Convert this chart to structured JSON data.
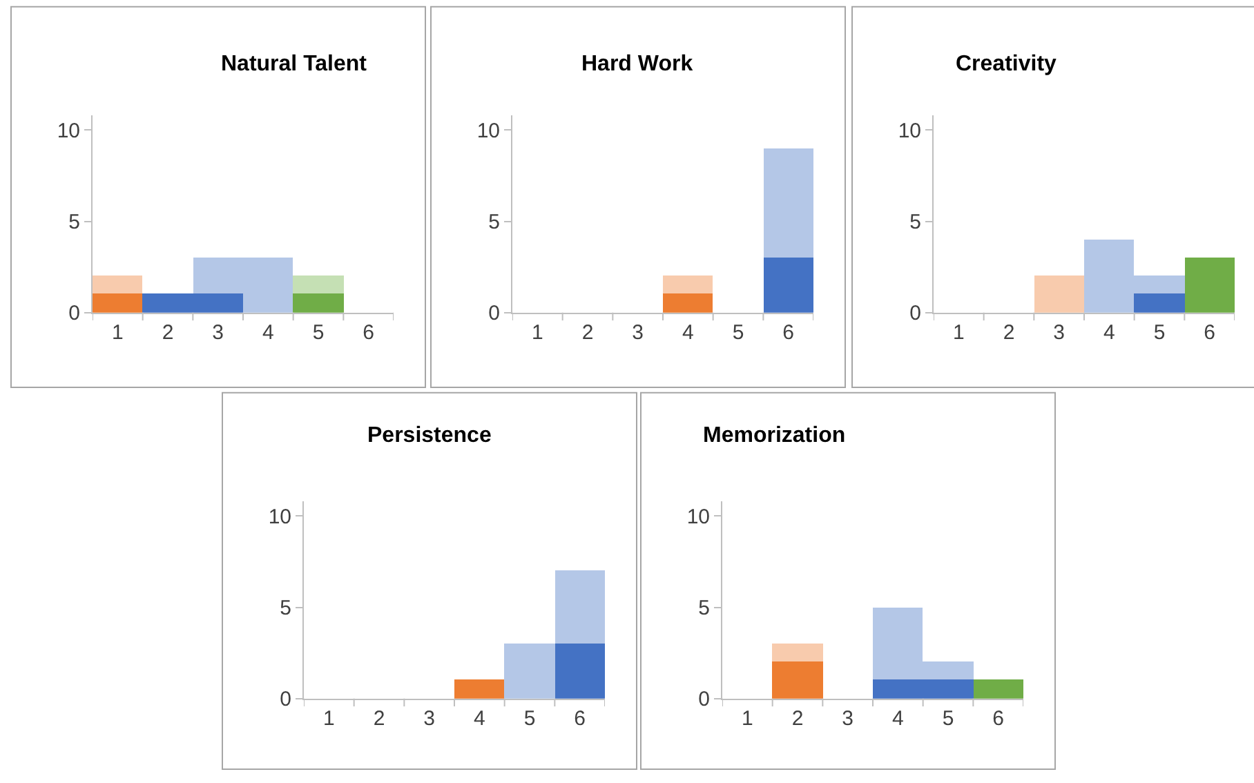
{
  "chart_data": [
    {
      "type": "bar",
      "title": "Natural Talent",
      "categories": [
        "1",
        "2",
        "3",
        "4",
        "5",
        "6"
      ],
      "stacked": true,
      "ylim": [
        0,
        10.8
      ],
      "yticks": [
        0,
        5,
        10
      ],
      "series": [
        {
          "values": [
            1,
            1,
            1,
            0,
            1,
            0
          ],
          "colors": [
            "#ed7d31",
            "#4472c4",
            "#4472c4",
            "#4472c4",
            "#70ad47",
            "#70ad47"
          ]
        },
        {
          "values": [
            1,
            0,
            2,
            3,
            1,
            0
          ],
          "colors": [
            "#f8cbad",
            "#b4c7e7",
            "#b4c7e7",
            "#b4c7e7",
            "#c5e0b4",
            "#c5e0b4"
          ]
        }
      ]
    },
    {
      "type": "bar",
      "title": "Hard Work",
      "categories": [
        "1",
        "2",
        "3",
        "4",
        "5",
        "6"
      ],
      "stacked": true,
      "ylim": [
        0,
        10.8
      ],
      "yticks": [
        0,
        5,
        10
      ],
      "series": [
        {
          "values": [
            0,
            0,
            0,
            1,
            0,
            3
          ],
          "colors": [
            "#ed7d31",
            "#ed7d31",
            "#ed7d31",
            "#ed7d31",
            "#4472c4",
            "#4472c4"
          ]
        },
        {
          "values": [
            0,
            0,
            0,
            1,
            0,
            6
          ],
          "colors": [
            "#f8cbad",
            "#f8cbad",
            "#f8cbad",
            "#f8cbad",
            "#b4c7e7",
            "#b4c7e7"
          ]
        }
      ]
    },
    {
      "type": "bar",
      "title": "Creativity",
      "categories": [
        "1",
        "2",
        "3",
        "4",
        "5",
        "6"
      ],
      "stacked": true,
      "ylim": [
        0,
        10.8
      ],
      "yticks": [
        0,
        5,
        10
      ],
      "series": [
        {
          "values": [
            0,
            0,
            0,
            0,
            1,
            3
          ],
          "colors": [
            "#ed7d31",
            "#ed7d31",
            "#ed7d31",
            "#4472c4",
            "#4472c4",
            "#70ad47"
          ]
        },
        {
          "values": [
            0,
            0,
            2,
            4,
            1,
            0
          ],
          "colors": [
            "#f8cbad",
            "#f8cbad",
            "#f8cbad",
            "#b4c7e7",
            "#b4c7e7",
            "#c5e0b4"
          ]
        }
      ]
    },
    {
      "type": "bar",
      "title": "Persistence",
      "categories": [
        "1",
        "2",
        "3",
        "4",
        "5",
        "6"
      ],
      "stacked": true,
      "ylim": [
        0,
        10.8
      ],
      "yticks": [
        0,
        5,
        10
      ],
      "series": [
        {
          "values": [
            0,
            0,
            0,
            1,
            0,
            3
          ],
          "colors": [
            "#ed7d31",
            "#ed7d31",
            "#ed7d31",
            "#ed7d31",
            "#4472c4",
            "#4472c4"
          ]
        },
        {
          "values": [
            0,
            0,
            0,
            0,
            3,
            4
          ],
          "colors": [
            "#f8cbad",
            "#f8cbad",
            "#f8cbad",
            "#f8cbad",
            "#b4c7e7",
            "#b4c7e7"
          ]
        }
      ]
    },
    {
      "type": "bar",
      "title": "Memorization",
      "categories": [
        "1",
        "2",
        "3",
        "4",
        "5",
        "6"
      ],
      "stacked": true,
      "ylim": [
        0,
        10.8
      ],
      "yticks": [
        0,
        5,
        10
      ],
      "series": [
        {
          "values": [
            0,
            2,
            0,
            1,
            1,
            1
          ],
          "colors": [
            "#ed7d31",
            "#ed7d31",
            "#4472c4",
            "#4472c4",
            "#4472c4",
            "#70ad47"
          ]
        },
        {
          "values": [
            0,
            1,
            0,
            4,
            1,
            0
          ],
          "colors": [
            "#f8cbad",
            "#f8cbad",
            "#b4c7e7",
            "#b4c7e7",
            "#b4c7e7",
            "#c5e0b4"
          ]
        }
      ]
    }
  ]
}
